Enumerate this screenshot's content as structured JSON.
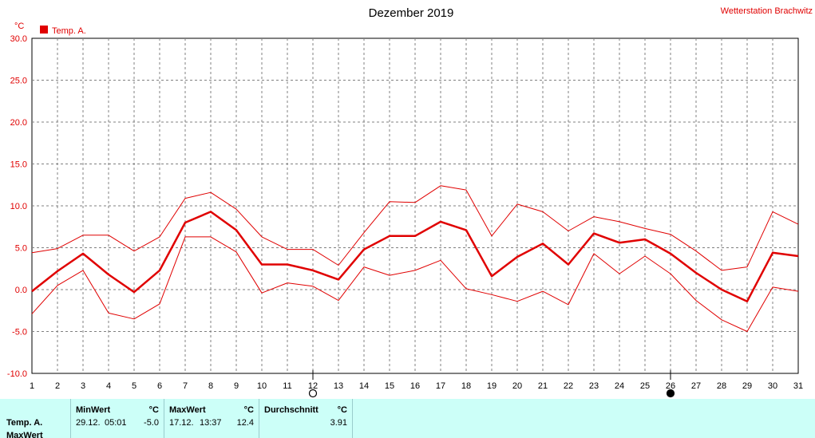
{
  "title": "Dezember 2019",
  "station": "Wetterstation Brachwitz",
  "y_unit": "°C",
  "chart_data": {
    "type": "line",
    "title": "Dezember 2019",
    "ylabel": "°C",
    "x": [
      1,
      2,
      3,
      4,
      5,
      6,
      7,
      8,
      9,
      10,
      11,
      12,
      13,
      14,
      15,
      16,
      17,
      18,
      19,
      20,
      21,
      22,
      23,
      24,
      25,
      26,
      27,
      28,
      29,
      30,
      31
    ],
    "ylim": [
      -10,
      30
    ],
    "yticks": [
      "-10.0",
      "-5.0",
      "0.0",
      "5.0",
      "10.0",
      "15.0",
      "20.0",
      "25.0",
      "30.0"
    ],
    "legend": "Temp. A.",
    "color": "#e00000",
    "series": [
      {
        "role": "mean",
        "values": [
          -0.2,
          2.2,
          4.3,
          1.8,
          -0.3,
          2.3,
          8.0,
          9.3,
          7.1,
          3.0,
          3.0,
          2.3,
          1.2,
          4.8,
          6.4,
          6.4,
          8.1,
          7.1,
          1.6,
          3.9,
          5.5,
          3.0,
          6.7,
          5.6,
          6.0,
          4.3,
          2.0,
          0.0,
          -1.4,
          4.4,
          4.0
        ]
      },
      {
        "role": "max",
        "values": [
          4.4,
          4.9,
          6.5,
          6.5,
          4.6,
          6.3,
          10.9,
          11.6,
          9.6,
          6.3,
          4.8,
          4.8,
          2.9,
          6.8,
          10.5,
          10.4,
          12.4,
          11.9,
          6.4,
          10.2,
          9.3,
          7.0,
          8.7,
          8.1,
          7.3,
          6.6,
          4.6,
          2.3,
          2.7,
          9.3,
          7.8
        ]
      },
      {
        "role": "min",
        "values": [
          -2.9,
          0.5,
          2.3,
          -2.8,
          -3.5,
          -1.7,
          6.3,
          6.3,
          4.5,
          -0.4,
          0.8,
          0.4,
          -1.3,
          2.7,
          1.7,
          2.3,
          3.5,
          0.1,
          -0.6,
          -1.4,
          -0.2,
          -1.8,
          4.3,
          1.9,
          4.0,
          1.9,
          -1.3,
          -3.6,
          -5.0,
          0.3,
          -0.2
        ]
      }
    ],
    "moon_markers": [
      {
        "day": 12,
        "phase": "full-moon-icon"
      },
      {
        "day": 26,
        "phase": "new-moon-icon"
      }
    ],
    "grid": true
  },
  "stats": {
    "row_label": "Temp. A.",
    "row_label2": "MaxWert",
    "min": {
      "header": "MinWert",
      "unit": "°C",
      "date": "29.12.",
      "time": "05:01",
      "value": "-5.0"
    },
    "max": {
      "header": "MaxWert",
      "unit": "°C",
      "date": "17.12.",
      "time": "13:37",
      "value": "12.4"
    },
    "avg": {
      "header": "Durchschnitt",
      "unit": "°C",
      "value": "3.91"
    }
  }
}
